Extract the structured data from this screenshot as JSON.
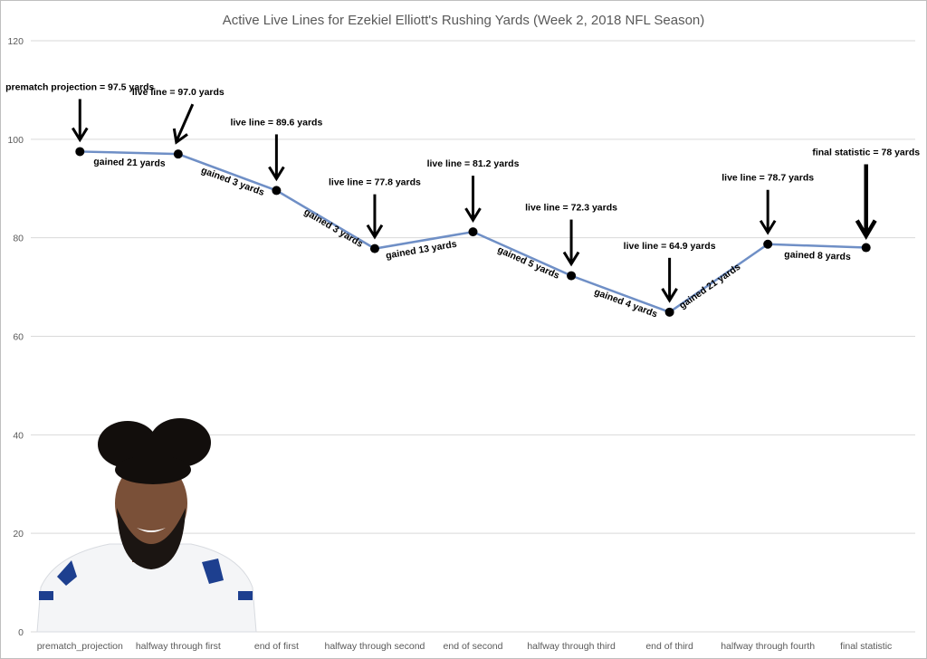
{
  "chart_data": {
    "type": "line",
    "title": "Active Live Lines for Ezekiel Elliott's Rushing Yards (Week 2, 2018 NFL Season)",
    "xlabel": "",
    "ylabel": "",
    "ylim": [
      0,
      120
    ],
    "yticks": [
      0,
      20,
      40,
      60,
      80,
      100,
      120
    ],
    "grid": true,
    "legend": "none",
    "categories": [
      "prematch_projection",
      "halfway through first",
      "end of first",
      "halfway through second",
      "end of second",
      "halfway through third",
      "end of third",
      "halfway through fourth",
      "final statistic"
    ],
    "series": [
      {
        "values": [
          97.5,
          97.0,
          89.6,
          77.8,
          81.2,
          72.3,
          64.9,
          78.7,
          78
        ]
      }
    ],
    "point_labels": [
      "prematch projection = 97.5 yards",
      "live line = 97.0 yards",
      "live line = 89.6 yards",
      "live line = 77.8 yards",
      "live line = 81.2 yards",
      "live line = 72.3 yards",
      "live line = 64.9 yards",
      "live line = 78.7 yards",
      "final statistic = 78 yards"
    ],
    "segment_labels": [
      "gained 21 yards",
      "gained 3 yards",
      "gained 3 yards",
      "gained 13 yards",
      "gained 5 yards",
      "gained 4 yards",
      "gained 21 yards",
      "gained 8 yards"
    ],
    "colors": {
      "line": "#6f8fc6",
      "marker": "#000000",
      "grid": "#d9d9d9",
      "text": "#595959"
    }
  },
  "photo": {
    "icon": "player-headshot-photo"
  }
}
